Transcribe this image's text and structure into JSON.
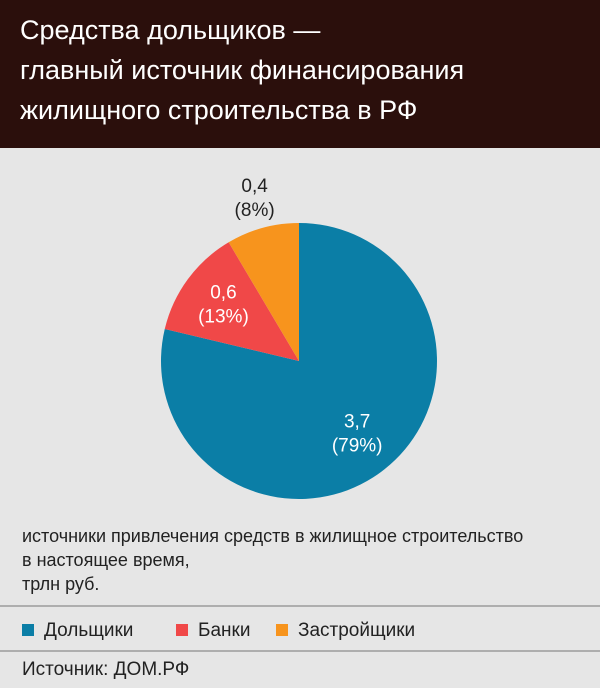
{
  "chart_data": {
    "type": "pie",
    "title": [
      "Средства дольщиков —",
      "главный источник финансирования",
      "жилищного строительства в РФ"
    ],
    "subtitle": [
      "источники привлечения средств в жилищное строительство",
      "в настоящее время,",
      "трлн руб."
    ],
    "categories": [
      "Дольщики",
      "Банки",
      "Застройщики"
    ],
    "values": [
      3.7,
      0.6,
      0.4
    ],
    "value_labels": [
      "3,7",
      "0,6",
      "0,4"
    ],
    "percents": [
      79,
      13,
      8
    ],
    "percent_labels": [
      "(79%)",
      "(13%)",
      "(8%)"
    ],
    "colors": [
      "#0b7ea6",
      "#f04848",
      "#f7941d"
    ],
    "source": "Источник: ДОМ.РФ"
  }
}
